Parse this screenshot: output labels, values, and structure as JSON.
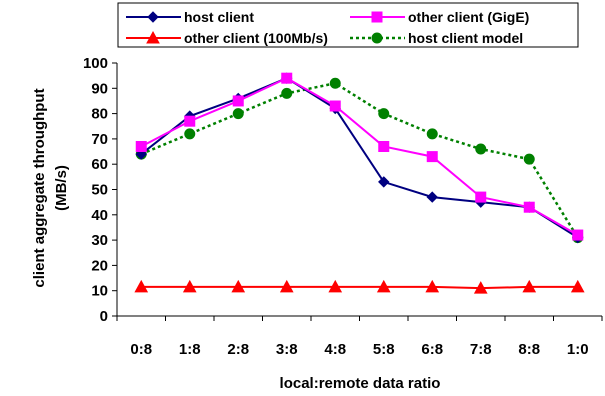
{
  "chart_data": {
    "type": "line",
    "title": "",
    "xlabel": "local:remote data ratio",
    "ylabel_lines": [
      "client aggregate throughput",
      "(MB/s)"
    ],
    "categories": [
      "0:8",
      "1:8",
      "2:8",
      "3:8",
      "4:8",
      "5:8",
      "6:8",
      "7:8",
      "8:8",
      "1:0"
    ],
    "ylim": [
      0,
      100
    ],
    "yticks": [
      0,
      10,
      20,
      30,
      40,
      50,
      60,
      70,
      80,
      90,
      100
    ],
    "grid": false,
    "legend_position": "top",
    "series": [
      {
        "name": "host client",
        "color": "#000080",
        "marker": "diamond",
        "dash": "solid",
        "values": [
          64,
          79,
          86,
          94,
          82,
          53,
          47,
          45,
          43,
          31
        ]
      },
      {
        "name": "other client (GigE)",
        "color": "#ff00ff",
        "marker": "square",
        "dash": "solid",
        "values": [
          67,
          77,
          85,
          94,
          83,
          67,
          63,
          47,
          43,
          32
        ]
      },
      {
        "name": "other client (100Mb/s)",
        "color": "#ff0000",
        "marker": "triangle",
        "dash": "solid",
        "values": [
          11.5,
          11.5,
          11.5,
          11.5,
          11.5,
          11.5,
          11.5,
          11,
          11.5,
          11.5
        ]
      },
      {
        "name": "host client model",
        "color": "#008000",
        "marker": "circle",
        "dash": "dotted",
        "values": [
          64,
          72,
          80,
          88,
          92,
          80,
          72,
          66,
          62,
          31
        ]
      }
    ]
  }
}
